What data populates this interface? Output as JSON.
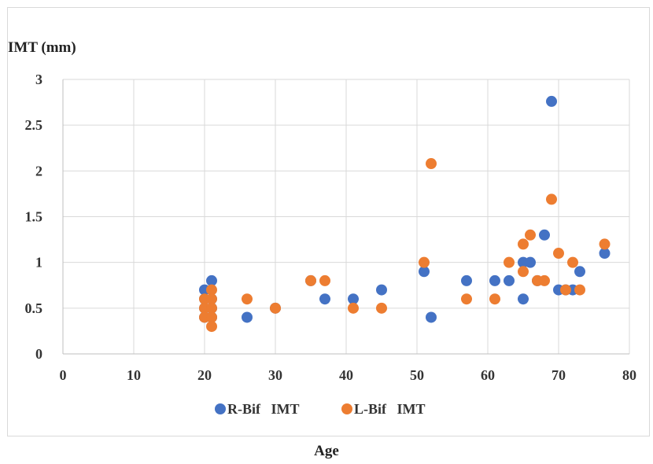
{
  "chart_data": {
    "type": "scatter",
    "title": "",
    "xlabel": "Age",
    "ylabel": "IMT (mm)",
    "xlim": [
      0,
      80
    ],
    "ylim": [
      0,
      3
    ],
    "xticks": [
      "0",
      "10",
      "20",
      "30",
      "40",
      "50",
      "60",
      "70",
      "80"
    ],
    "yticks": [
      "0",
      "0.5",
      "1",
      "1.5",
      "2",
      "2.5",
      "3"
    ],
    "grid": true,
    "legend_position": "bottom",
    "series": [
      {
        "name": "R-Bif   IMT",
        "color": "#4472C4",
        "points": [
          [
            20,
            0.7
          ],
          [
            20,
            0.6
          ],
          [
            20,
            0.5
          ],
          [
            20,
            0.4
          ],
          [
            21,
            0.8
          ],
          [
            21,
            0.6
          ],
          [
            21,
            0.5
          ],
          [
            21,
            0.4
          ],
          [
            26,
            0.4
          ],
          [
            30,
            0.5
          ],
          [
            35,
            0.8
          ],
          [
            37,
            0.6
          ],
          [
            41,
            0.6
          ],
          [
            45,
            0.7
          ],
          [
            51,
            0.9
          ],
          [
            52,
            0.4
          ],
          [
            57,
            0.8
          ],
          [
            61,
            0.8
          ],
          [
            63,
            0.8
          ],
          [
            65,
            1.0
          ],
          [
            65,
            0.6
          ],
          [
            66,
            1.0
          ],
          [
            67,
            0.8
          ],
          [
            68,
            1.3
          ],
          [
            69,
            2.76
          ],
          [
            70,
            0.7
          ],
          [
            71,
            0.7
          ],
          [
            72,
            0.7
          ],
          [
            73,
            0.9
          ],
          [
            76.5,
            1.1
          ]
        ]
      },
      {
        "name": "L-Bif   IMT",
        "color": "#ED7D31",
        "points": [
          [
            20,
            0.6
          ],
          [
            20,
            0.5
          ],
          [
            20,
            0.4
          ],
          [
            21,
            0.7
          ],
          [
            21,
            0.6
          ],
          [
            21,
            0.5
          ],
          [
            21,
            0.4
          ],
          [
            21,
            0.3
          ],
          [
            26,
            0.6
          ],
          [
            30,
            0.5
          ],
          [
            35,
            0.8
          ],
          [
            37,
            0.8
          ],
          [
            41,
            0.5
          ],
          [
            45,
            0.5
          ],
          [
            51,
            1.0
          ],
          [
            52,
            2.08
          ],
          [
            57,
            0.6
          ],
          [
            61,
            0.6
          ],
          [
            63,
            1.0
          ],
          [
            65,
            1.2
          ],
          [
            65,
            0.9
          ],
          [
            66,
            1.3
          ],
          [
            67,
            0.8
          ],
          [
            68,
            0.8
          ],
          [
            69,
            1.69
          ],
          [
            70,
            1.1
          ],
          [
            71,
            0.7
          ],
          [
            72,
            1.0
          ],
          [
            73,
            0.7
          ],
          [
            76.5,
            1.2
          ]
        ]
      }
    ]
  }
}
